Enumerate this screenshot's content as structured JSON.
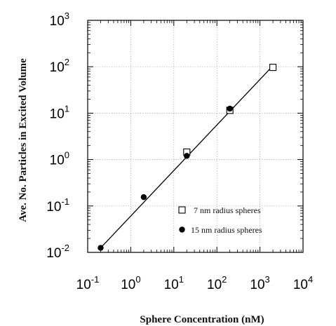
{
  "chart_data": {
    "type": "scatter",
    "title": "",
    "xlabel": "Sphere Concentration (nM)",
    "ylabel": "Ave. No. Particles in Excited Volume",
    "xscale": "log",
    "yscale": "log",
    "xlim": [
      0.1,
      10000
    ],
    "ylim": [
      0.01,
      1000
    ],
    "grid": true,
    "legend_position": "bottom-right",
    "x_ticks": [
      {
        "base": "10",
        "exp": "-1",
        "value": 0.1
      },
      {
        "base": "10",
        "exp": "0",
        "value": 1
      },
      {
        "base": "10",
        "exp": "1",
        "value": 10
      },
      {
        "base": "10",
        "exp": "2",
        "value": 100
      },
      {
        "base": "10",
        "exp": "3",
        "value": 1000
      },
      {
        "base": "10",
        "exp": "4",
        "value": 10000
      }
    ],
    "y_ticks": [
      {
        "base": "10",
        "exp": "-2",
        "value": 0.01
      },
      {
        "base": "10",
        "exp": "-1",
        "value": 0.1
      },
      {
        "base": "10",
        "exp": "0",
        "value": 1
      },
      {
        "base": "10",
        "exp": "1",
        "value": 10
      },
      {
        "base": "10",
        "exp": "2",
        "value": 100
      },
      {
        "base": "10",
        "exp": "3",
        "value": 1000
      }
    ],
    "series": [
      {
        "name": "7 nm radius spheres",
        "marker": "open-square",
        "color": "#000000",
        "points": [
          {
            "x": 20,
            "y": 1.45
          },
          {
            "x": 200,
            "y": 11.5
          },
          {
            "x": 2000,
            "y": 97
          }
        ]
      },
      {
        "name": "15 nm radius spheres",
        "marker": "filled-circle",
        "color": "#000000",
        "points": [
          {
            "x": 0.2,
            "y": 0.0125
          },
          {
            "x": 2,
            "y": 0.155
          },
          {
            "x": 20,
            "y": 1.2
          },
          {
            "x": 200,
            "y": 12.5
          }
        ]
      }
    ],
    "fit_line": {
      "from": {
        "x": 0.2,
        "y": 0.0125
      },
      "to": {
        "x": 2000,
        "y": 105
      }
    }
  }
}
